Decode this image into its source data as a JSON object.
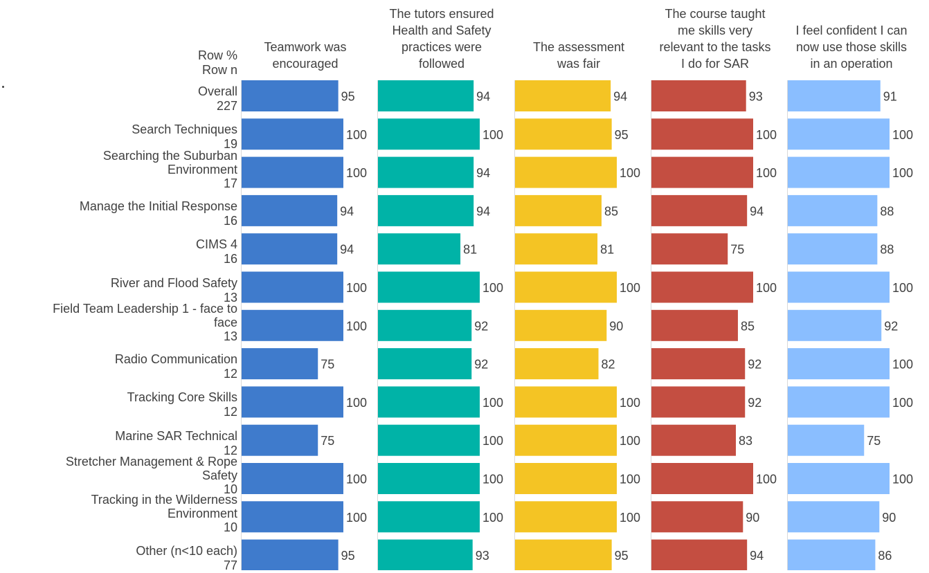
{
  "chart_data": {
    "type": "bar",
    "orientation": "horizontal",
    "row_header": [
      "Row %",
      "Row n"
    ],
    "columns": [
      {
        "name": "Teamwork was encouraged",
        "color": "#3F7BCC"
      },
      {
        "name": "The tutors ensured Health and Safety practices were followed",
        "color": "#00B3A7"
      },
      {
        "name": "The assessment was fair",
        "color": "#F4C424"
      },
      {
        "name": "The course taught me skills very relevant to the tasks I do for SAR",
        "color": "#C44E41"
      },
      {
        "name": "I feel confident I can now use those skills in an operation",
        "color": "#8ABEFF"
      }
    ],
    "rows": [
      {
        "label": "Overall",
        "n": "227",
        "values": [
          95,
          94,
          94,
          93,
          91
        ]
      },
      {
        "label": "Search Techniques",
        "n": "19",
        "values": [
          100,
          100,
          95,
          100,
          100
        ]
      },
      {
        "label": "Searching the Suburban Environment",
        "n": "17",
        "values": [
          100,
          94,
          100,
          100,
          100
        ]
      },
      {
        "label": "Manage the Initial Response",
        "n": "16",
        "values": [
          94,
          94,
          85,
          94,
          88
        ]
      },
      {
        "label": "CIMS 4",
        "n": "16",
        "values": [
          94,
          81,
          81,
          75,
          88
        ]
      },
      {
        "label": "River and Flood Safety",
        "n": "13",
        "values": [
          100,
          100,
          100,
          100,
          100
        ]
      },
      {
        "label": "Field Team Leadership 1 - face to face",
        "n": "13",
        "values": [
          100,
          92,
          90,
          85,
          92
        ]
      },
      {
        "label": "Radio Communication",
        "n": "12",
        "values": [
          75,
          92,
          82,
          92,
          100
        ]
      },
      {
        "label": "Tracking Core Skills",
        "n": "12",
        "values": [
          100,
          100,
          100,
          92,
          100
        ]
      },
      {
        "label": "Marine SAR Technical",
        "n": "12",
        "values": [
          75,
          100,
          100,
          83,
          75
        ]
      },
      {
        "label": "Stretcher Management & Rope Safety",
        "n": "10",
        "values": [
          100,
          100,
          100,
          100,
          100
        ]
      },
      {
        "label": "Tracking in the Wilderness Environment",
        "n": "10",
        "values": [
          100,
          100,
          100,
          90,
          90
        ]
      },
      {
        "label": "Other (n<10 each)",
        "n": "77",
        "values": [
          95,
          93,
          95,
          94,
          86
        ]
      }
    ],
    "xlim": [
      0,
      100
    ],
    "grid": false,
    "legend": "none"
  }
}
